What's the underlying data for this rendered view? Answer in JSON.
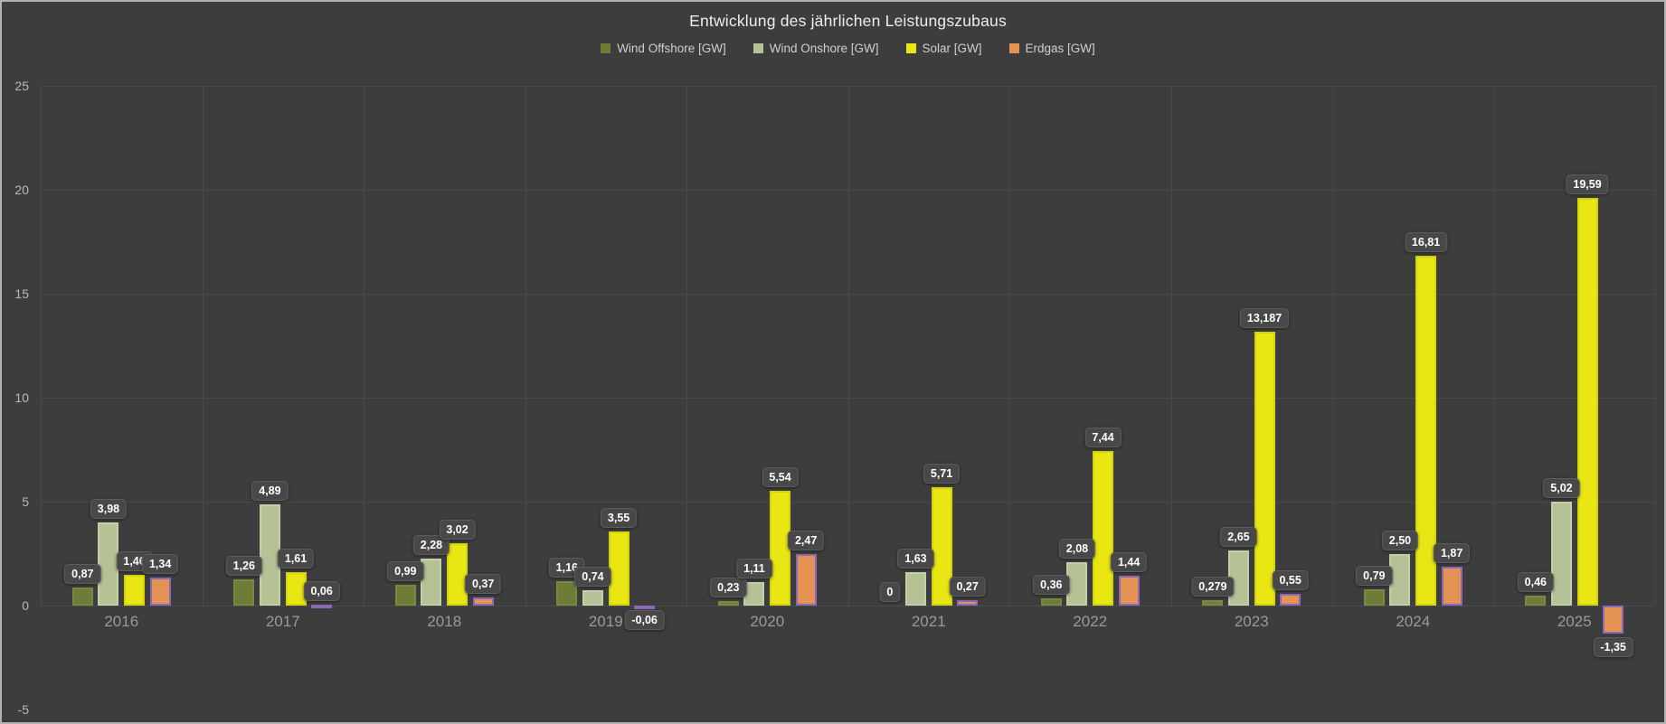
{
  "chart_data": {
    "type": "bar",
    "title": "Entwicklung des jährlichen Leistungszubaus",
    "categories": [
      "2016",
      "2017",
      "2018",
      "2019",
      "2020",
      "2021",
      "2022",
      "2023",
      "2024",
      "2025"
    ],
    "series": [
      {
        "key": "wind-offshore",
        "name": "Wind Offshore [GW]",
        "color": "#6d7d37",
        "border_color": "#79893f",
        "values": [
          0.87,
          1.26,
          0.99,
          1.16,
          0.23,
          0,
          0.36,
          0.279,
          0.79,
          0.46
        ],
        "labels": [
          "0,87",
          "1,26",
          "0,99",
          "1,16",
          "0,23",
          "0",
          "0,36",
          "0,279",
          "0,79",
          "0,46"
        ]
      },
      {
        "key": "wind-onshore",
        "name": "Wind Onshore [GW]",
        "color": "#b4c296",
        "border_color": "#c3cfa8",
        "values": [
          3.98,
          4.89,
          2.28,
          0.74,
          1.11,
          1.63,
          2.08,
          2.65,
          2.5,
          5.02
        ],
        "labels": [
          "3,98",
          "4,89",
          "2,28",
          "0,74",
          "1,11",
          "1,63",
          "2,08",
          "2,65",
          "2,50",
          "5,02"
        ]
      },
      {
        "key": "solar",
        "name": "Solar [GW]",
        "color": "#e9e613",
        "border_color": "#d2d40e",
        "values": [
          1.46,
          1.61,
          3.02,
          3.55,
          5.54,
          5.71,
          7.44,
          13.187,
          16.81,
          19.59
        ],
        "labels": [
          "1,46",
          "1,61",
          "3,02",
          "3,55",
          "5,54",
          "5,71",
          "7,44",
          "13,187",
          "16,81",
          "19,59"
        ]
      },
      {
        "key": "erdgas",
        "name": "Erdgas [GW]",
        "color": "#e59355",
        "border_color": "#8a68ba",
        "values": [
          1.34,
          0.06,
          0.37,
          -0.06,
          2.47,
          0.27,
          1.44,
          0.55,
          1.87,
          -1.35
        ],
        "labels": [
          "1,34",
          "0,06",
          "0,37",
          "-0,06",
          "2,47",
          "0,27",
          "1,44",
          "0,55",
          "1,87",
          "-1,35"
        ]
      }
    ],
    "ylabel": "",
    "xlabel": "",
    "ylim": [
      -5,
      25
    ],
    "yticks": [
      25,
      20,
      15,
      10,
      5,
      0,
      -5
    ],
    "grid": true,
    "legend_position": "top",
    "background_color": "#3d3d3d",
    "gridline_color": "#4a4a4a"
  }
}
